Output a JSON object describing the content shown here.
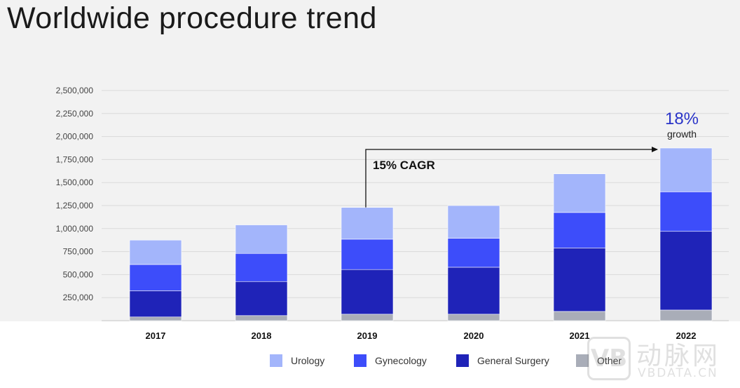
{
  "page": {
    "title": "Worldwide procedure trend"
  },
  "chart_data": {
    "type": "bar",
    "stacked": true,
    "title": "Worldwide procedure trend",
    "xlabel": "",
    "ylabel": "",
    "ylim": [
      0,
      2500000
    ],
    "yticks": [
      250000,
      500000,
      750000,
      1000000,
      1250000,
      1500000,
      1750000,
      2000000,
      2250000,
      2500000
    ],
    "ytick_labels": [
      "250,000",
      "500,000",
      "750,000",
      "1,000,000",
      "1,250,000",
      "1,500,000",
      "1,750,000",
      "2,000,000",
      "2,250,000",
      "2,500,000"
    ],
    "categories": [
      "2017",
      "2018",
      "2019",
      "2020",
      "2021",
      "2022"
    ],
    "grid": true,
    "series": [
      {
        "name": "Other",
        "color": "#a9adb8",
        "values": [
          40000,
          55000,
          70000,
          70000,
          100000,
          115000
        ]
      },
      {
        "name": "General Surgery",
        "color": "#1f23b8",
        "values": [
          285000,
          370000,
          485000,
          510000,
          690000,
          855000
        ]
      },
      {
        "name": "Gynecology",
        "color": "#3d4dfa",
        "values": [
          285000,
          305000,
          330000,
          315000,
          385000,
          430000
        ]
      },
      {
        "name": "Urology",
        "color": "#a3b5fb",
        "values": [
          265000,
          310000,
          345000,
          355000,
          420000,
          475000
        ]
      }
    ],
    "legend_order": [
      "Urology",
      "Gynecology",
      "General Surgery",
      "Other"
    ],
    "legend_position": "bottom",
    "annotations": {
      "cagr_label": "15% CAGR",
      "cagr_from": "2019",
      "cagr_to": "2022",
      "growth_value": "18%",
      "growth_label": "growth",
      "growth_category": "2022"
    }
  },
  "legend": {
    "urology": "Urology",
    "gynecology": "Gynecology",
    "general_surgery": "General Surgery",
    "other": "Other"
  },
  "watermark": {
    "logo_letter": "VB",
    "cn_text": "动脉网",
    "en_text": "VBDATA.CN"
  }
}
